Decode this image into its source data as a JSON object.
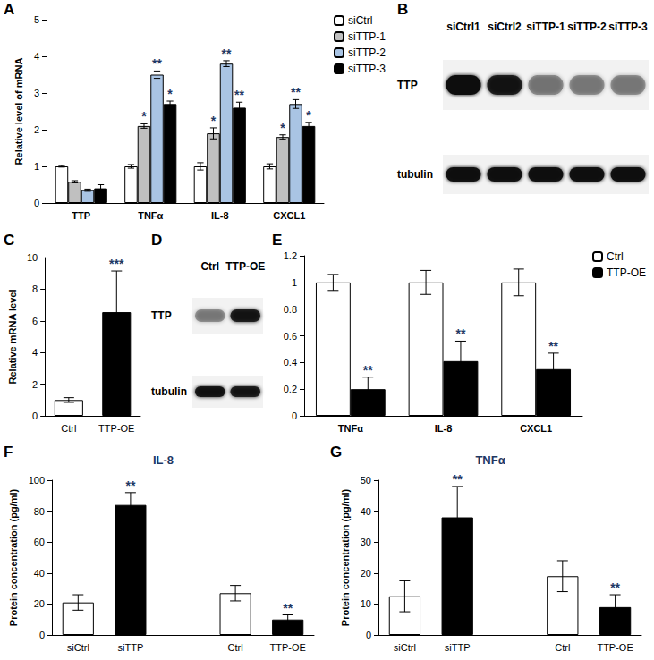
{
  "chart_data": [
    {
      "panel": "A",
      "type": "bar",
      "categories": [
        "TTP",
        "TNFα",
        "IL-8",
        "CXCL1"
      ],
      "y_label": "Relative level of mRNA",
      "ylim": [
        0,
        5
      ],
      "yticks": [
        0,
        1,
        2,
        3,
        4,
        5
      ],
      "grid": false,
      "legend": "right",
      "series": [
        {
          "name": "siCtrl",
          "color": "#ffffff",
          "values": [
            1,
            1,
            1,
            1
          ],
          "errors": [
            0.02,
            0.05,
            0.1,
            0.07
          ],
          "significance": [
            null,
            null,
            null,
            null
          ]
        },
        {
          "name": "siTTP-1",
          "color": "#c0c0c0",
          "values": [
            0.58,
            2.1,
            1.9,
            1.8
          ],
          "errors": [
            0.03,
            0.06,
            0.15,
            0.06
          ],
          "significance": [
            null,
            "*",
            "*",
            "*"
          ]
        },
        {
          "name": "siTTP-2",
          "color": "#a9c4e4",
          "values": [
            0.35,
            3.5,
            3.8,
            2.7
          ],
          "errors": [
            0.03,
            0.1,
            0.08,
            0.12
          ],
          "significance": [
            null,
            "**",
            "**",
            "**"
          ]
        },
        {
          "name": "siTTP-3",
          "color": "#000000",
          "values": [
            0.4,
            2.7,
            2.6,
            2.1
          ],
          "errors": [
            0.1,
            0.08,
            0.15,
            0.1
          ],
          "significance": [
            null,
            "*",
            "**",
            "*"
          ]
        }
      ]
    },
    {
      "panel": "C",
      "type": "bar",
      "categories": [
        "Ctrl",
        "TTP-OE"
      ],
      "y_label": "Relative mRNA level",
      "ylim": [
        0,
        10
      ],
      "yticks": [
        0,
        2,
        4,
        6,
        8,
        10
      ],
      "grid": false,
      "values": [
        1,
        6.55
      ],
      "colors": [
        "#ffffff",
        "#000000"
      ],
      "errors": [
        0.15,
        2.6
      ],
      "significance": [
        null,
        "***"
      ]
    },
    {
      "panel": "E",
      "type": "bar",
      "categories": [
        "TNFα",
        "IL-8",
        "CXCL1"
      ],
      "ylim": [
        0,
        1.2
      ],
      "yticks": [
        0,
        0.2,
        0.4,
        0.6,
        0.8,
        1,
        1.2
      ],
      "grid": false,
      "legend": "top-right",
      "series": [
        {
          "name": "Ctrl",
          "color": "#ffffff",
          "values": [
            1,
            1,
            1
          ],
          "errors": [
            0.06,
            0.09,
            0.1
          ],
          "significance": [
            null,
            null,
            null
          ]
        },
        {
          "name": "TTP-OE",
          "color": "#000000",
          "values": [
            0.2,
            0.41,
            0.35
          ],
          "errors": [
            0.09,
            0.15,
            0.12
          ],
          "significance": [
            "**",
            "**",
            "**"
          ]
        }
      ]
    },
    {
      "panel": "F",
      "type": "bar",
      "title": "IL-8",
      "categories": [
        "siCtrl",
        "siTTP",
        null,
        "Ctrl",
        "TTP-OE"
      ],
      "y_label": "Protein concentration (pg/ml)",
      "ylim": [
        0,
        100
      ],
      "yticks": [
        0,
        20,
        40,
        60,
        80,
        100
      ],
      "grid": false,
      "values": [
        21,
        84,
        null,
        27,
        10
      ],
      "colors": [
        "#ffffff",
        "#000000",
        null,
        "#ffffff",
        "#000000"
      ],
      "errors": [
        5,
        8,
        null,
        5,
        3
      ],
      "significance": [
        null,
        "**",
        null,
        null,
        "**"
      ]
    },
    {
      "panel": "G",
      "type": "bar",
      "title": "TNFα",
      "categories": [
        "siCtrl",
        "siTTP",
        null,
        "Ctrl",
        "TTP-OE"
      ],
      "y_label": "Protein concentration (pg/ml)",
      "ylim": [
        0,
        50
      ],
      "yticks": [
        0,
        10,
        20,
        30,
        40,
        50
      ],
      "grid": false,
      "values": [
        12.5,
        38,
        null,
        19,
        9
      ],
      "colors": [
        "#ffffff",
        "#000000",
        null,
        "#ffffff",
        "#000000"
      ],
      "errors": [
        5,
        10,
        null,
        5,
        4
      ],
      "significance": [
        null,
        "**",
        null,
        null,
        "**"
      ]
    }
  ],
  "blots": [
    {
      "panel": "B",
      "lanes": [
        "siCtrl1",
        "siCtrl2",
        "siTTP-1",
        "siTTP-2",
        "siTTP-3"
      ],
      "rows": [
        {
          "label": "TTP",
          "band_intensity": [
            1,
            0.85,
            0.35,
            0.3,
            0.3
          ]
        },
        {
          "label": "tubulin",
          "band_intensity": [
            0.95,
            0.95,
            0.95,
            0.95,
            0.95
          ]
        }
      ]
    },
    {
      "panel": "D",
      "lanes": [
        "Ctrl",
        "TTP-OE"
      ],
      "rows": [
        {
          "label": "TTP",
          "band_intensity": [
            0.3,
            0.85
          ]
        },
        {
          "label": "tubulin",
          "band_intensity": [
            0.9,
            0.85
          ]
        }
      ]
    }
  ]
}
